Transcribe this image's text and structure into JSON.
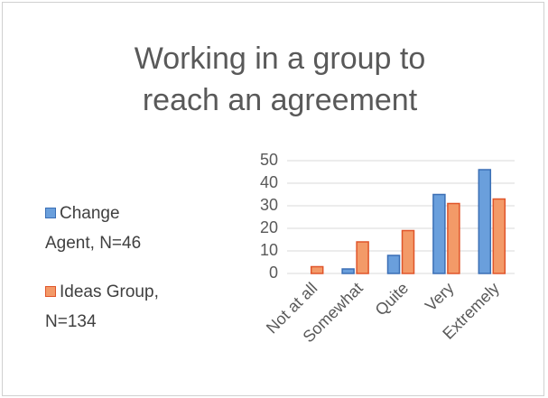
{
  "chart_data": {
    "type": "bar",
    "title": "Working in a group to reach an agreement",
    "categories": [
      "Not at all",
      "Somewhat",
      "Quite",
      "Very",
      "Extremely"
    ],
    "series": [
      {
        "name": "Change Agent, N=46",
        "color": "#6a9fdc",
        "values": [
          0,
          2,
          8,
          35,
          46
        ]
      },
      {
        "name": "Ideas Group, N=134",
        "color": "#f39a68",
        "values": [
          3,
          14,
          19,
          31,
          33
        ]
      }
    ],
    "ylim": [
      0,
      50
    ],
    "yticks": [
      0,
      10,
      20,
      30,
      40,
      50
    ],
    "grid": true,
    "legend": "left"
  }
}
